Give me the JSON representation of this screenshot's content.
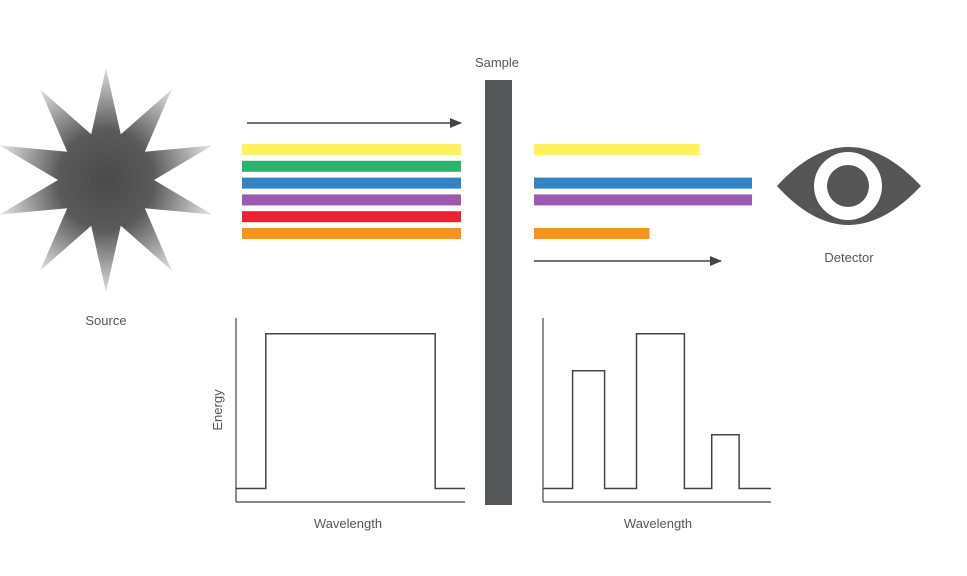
{
  "labels": {
    "source": "Source",
    "sample": "Sample",
    "detector": "Detector",
    "energy_axis": "Energy",
    "input_wavelength": "Wavelength",
    "output_wavelength": "Wavelength"
  },
  "icons": {
    "source": "starburst-light-source-icon",
    "detector": "eye-icon",
    "arrow": "arrow-right-icon"
  },
  "colors": {
    "yellow": "#fdf15d",
    "green": "#2db46c",
    "blue": "#3383c5",
    "purple": "#9b59b0",
    "red": "#ee1f2e",
    "orange": "#f6931e",
    "sample": "#555658",
    "icon_gray": "#555555",
    "line": "#444444"
  },
  "incident_bands": [
    {
      "color": "yellow",
      "intensity": 1
    },
    {
      "color": "green",
      "intensity": 1
    },
    {
      "color": "blue",
      "intensity": 1
    },
    {
      "color": "purple",
      "intensity": 1
    },
    {
      "color": "red",
      "intensity": 1
    },
    {
      "color": "orange",
      "intensity": 1
    }
  ],
  "transmitted_bands": [
    {
      "color": "yellow",
      "intensity": 0.76
    },
    {
      "color": "green",
      "intensity": 0
    },
    {
      "color": "blue",
      "intensity": 1
    },
    {
      "color": "purple",
      "intensity": 1
    },
    {
      "color": "red",
      "intensity": 0
    },
    {
      "color": "orange",
      "intensity": 0.53
    }
  ],
  "chart_data": [
    {
      "type": "line",
      "id": "incident-spectrum",
      "title": "",
      "xlabel": "Wavelength",
      "ylabel": "Energy",
      "x": [
        0,
        0.13,
        0.13,
        0.87,
        0.87,
        1.0
      ],
      "y": [
        0.08,
        0.08,
        1.0,
        1.0,
        0.08,
        0.08
      ],
      "xlim": [
        0,
        1
      ],
      "ylim": [
        0,
        1.2
      ],
      "step": true,
      "grid": false
    },
    {
      "type": "line",
      "id": "transmitted-spectrum",
      "title": "",
      "xlabel": "Wavelength",
      "ylabel": "",
      "x": [
        0,
        0.13,
        0.13,
        0.27,
        0.27,
        0.41,
        0.41,
        0.62,
        0.62,
        0.74,
        0.74,
        0.86,
        0.86,
        1.0
      ],
      "y": [
        0.08,
        0.08,
        0.78,
        0.78,
        0.08,
        0.08,
        1.0,
        1.0,
        0.08,
        0.08,
        0.4,
        0.4,
        0.08,
        0.08
      ],
      "xlim": [
        0,
        1
      ],
      "ylim": [
        0,
        1.2
      ],
      "step": true,
      "grid": false
    }
  ]
}
